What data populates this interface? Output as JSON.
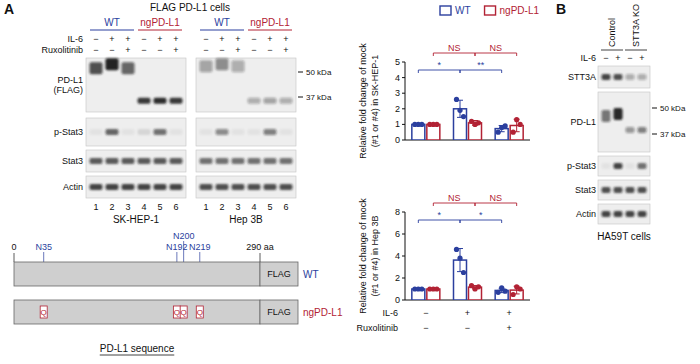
{
  "panel_a": {
    "label": "A",
    "title": "FLAG PD-L1 cells",
    "group_colors": [
      "#2b3f9e",
      "#b22234"
    ],
    "treatments": [
      "IL-6",
      "Ruxolitinib"
    ],
    "row_labels": [
      [
        "PD-L1",
        "(FLAG)"
      ],
      [
        "p-Stat3"
      ],
      [
        "Stat3"
      ],
      [
        "Actin"
      ]
    ],
    "markers": [
      {
        "value": 50,
        "label": "50 kDa"
      },
      {
        "value": 37,
        "label": "37 kDa"
      }
    ],
    "blots": [
      {
        "cell_line": "SK-HEP-1",
        "groups": [
          "WT",
          "ngPD-L1"
        ],
        "lane_numbers": [
          1,
          2,
          3,
          4,
          5,
          6
        ],
        "treatment_signs": [
          [
            "−",
            "+",
            "+",
            "−",
            "+",
            "+"
          ],
          [
            "−",
            "−",
            "+",
            "−",
            "−",
            "+"
          ]
        ],
        "rows": [
          {
            "kda": [
              52,
              54,
              52,
              35,
              35,
              35
            ],
            "intensity": [
              0.75,
              0.97,
              0.65,
              0.85,
              0.9,
              0.85
            ]
          },
          {
            "intensity": [
              0.05,
              0.65,
              0.05,
              0.1,
              0.6,
              0.05
            ]
          },
          {
            "intensity": [
              0.7,
              0.7,
              0.7,
              0.7,
              0.7,
              0.7
            ]
          },
          {
            "intensity": [
              0.8,
              0.8,
              0.8,
              0.8,
              0.8,
              0.8
            ]
          }
        ]
      },
      {
        "cell_line": "Hep 3B",
        "groups": [
          "WT",
          "ngPD-L1"
        ],
        "lane_numbers": [
          1,
          2,
          3,
          4,
          5,
          6
        ],
        "treatment_signs": [
          [
            "−",
            "+",
            "+",
            "−",
            "+",
            "+"
          ],
          [
            "−",
            "−",
            "+",
            "−",
            "−",
            "+"
          ]
        ],
        "rows": [
          {
            "kda": [
              53,
              54,
              53,
              35,
              35,
              35
            ],
            "intensity": [
              0.35,
              0.45,
              0.3,
              0.3,
              0.35,
              0.3
            ]
          },
          {
            "intensity": [
              0.05,
              0.45,
              0.05,
              0.05,
              0.5,
              0.05
            ]
          },
          {
            "intensity": [
              0.6,
              0.6,
              0.6,
              0.6,
              0.6,
              0.6
            ]
          },
          {
            "intensity": [
              0.75,
              0.75,
              0.75,
              0.75,
              0.75,
              0.75
            ]
          }
        ]
      }
    ]
  },
  "chart_data": [
    {
      "type": "bar",
      "y_label": [
        "Relative fold change of mock",
        "(#1 or #4) in SK-HEP-1"
      ],
      "categories": [
        null,
        null,
        null
      ],
      "ylim": [
        0,
        5
      ],
      "yticks": [
        0,
        1,
        2,
        3,
        4,
        5
      ],
      "grid": false,
      "legend": "top",
      "series": [
        {
          "name": "WT",
          "color": "#2b3f9e",
          "values": [
            1,
            2.0,
            0.73
          ],
          "errors": [
            0,
            0.55,
            0.2
          ],
          "points": [
            [
              1,
              1,
              1
            ],
            [
              2.6,
              1.9,
              1.5
            ],
            [
              0.5,
              0.8,
              0.9
            ]
          ]
        },
        {
          "name": "ngPD-L1",
          "color": "#b22234",
          "values": [
            1,
            1.1,
            0.93
          ],
          "errors": [
            0,
            0.15,
            0.4
          ],
          "points": [
            [
              1,
              1,
              1
            ],
            [
              1.2,
              1.0,
              1.1
            ],
            [
              0.5,
              1.3,
              1.0
            ]
          ]
        }
      ],
      "annotations": [
        {
          "text": "*",
          "series": 0,
          "from": 0,
          "to": 1
        },
        {
          "text": "**",
          "series": 0,
          "from": 1,
          "to": 2
        },
        {
          "text": "NS",
          "series": 1,
          "from": 0,
          "to": 1
        },
        {
          "text": "NS",
          "series": 1,
          "from": 1,
          "to": 2
        }
      ]
    },
    {
      "type": "bar",
      "y_label": [
        "Relative fold change of mock",
        "(#1 or #4) in Hep 3B"
      ],
      "categories": [
        null,
        null,
        null
      ],
      "ylim": [
        0,
        8
      ],
      "yticks": [
        0,
        2,
        4,
        6,
        8
      ],
      "grid": false,
      "series": [
        {
          "color": "#2b3f9e",
          "values": [
            1,
            3.63,
            0.87
          ],
          "errors": [
            0,
            1.05,
            0.2
          ],
          "points": [
            [
              1,
              1,
              1
            ],
            [
              4.6,
              3.8,
              2.5
            ],
            [
              0.7,
              1.1,
              0.8
            ]
          ]
        },
        {
          "color": "#b22234",
          "values": [
            1,
            1.17,
            0.9
          ],
          "errors": [
            0,
            0.15,
            0.35
          ],
          "points": [
            [
              1,
              1,
              1
            ],
            [
              1.3,
              1.0,
              1.2
            ],
            [
              0.5,
              1.2,
              1.0
            ]
          ]
        }
      ],
      "x_rows": [
        {
          "label": "IL-6",
          "values": [
            "−",
            "+",
            "+"
          ]
        },
        {
          "label": "Ruxolitinib",
          "values": [
            "−",
            "−",
            "+"
          ]
        }
      ],
      "annotations": [
        {
          "text": "*",
          "series": 0,
          "from": 0,
          "to": 1
        },
        {
          "text": "*",
          "series": 0,
          "from": 1,
          "to": 2
        },
        {
          "text": "NS",
          "series": 1,
          "from": 0,
          "to": 1
        },
        {
          "text": "NS",
          "series": 1,
          "from": 1,
          "to": 2
        }
      ]
    }
  ],
  "panel_b": {
    "label": "B",
    "groups": [
      "Control",
      "STT3A KO"
    ],
    "treatments": [
      "IL-6"
    ],
    "treatment_signs": [
      [
        "−",
        "+",
        "−",
        "+"
      ]
    ],
    "row_labels": [
      [
        "STT3A"
      ],
      [
        "PD-L1"
      ],
      [
        "p-Stat3"
      ],
      [
        "Stat3"
      ],
      [
        "Actin"
      ]
    ],
    "markers": [
      {
        "value": 50,
        "label": "50 kDa"
      },
      {
        "value": 37,
        "label": "37 kDa"
      }
    ],
    "rows": [
      {
        "intensity": [
          0.8,
          0.75,
          0.3,
          0.3
        ]
      },
      {
        "kda": [
          46,
          47,
          39,
          39
        ],
        "intensity": [
          0.55,
          0.95,
          0.4,
          0.5
        ]
      },
      {
        "intensity": [
          0.05,
          0.8,
          0.05,
          0.6
        ]
      },
      {
        "intensity": [
          0.75,
          0.75,
          0.75,
          0.75
        ]
      },
      {
        "intensity": [
          0.8,
          0.8,
          0.8,
          0.8
        ]
      }
    ],
    "cell_line": "HA59T cells"
  },
  "diagram": {
    "start": 0,
    "end": {
      "value": 290,
      "label": "290 aa"
    },
    "sites": [
      {
        "position": 35,
        "label": "N35"
      },
      {
        "position": 192,
        "label": "N192"
      },
      {
        "position": 200,
        "label": "N200"
      },
      {
        "position": 219,
        "label": "N219"
      }
    ],
    "constructs": [
      {
        "name": "WT",
        "tag": "FLAG",
        "color": "#2b3f9e"
      },
      {
        "name": "ngPD-L1",
        "tag": "FLAG",
        "substitution": "Q",
        "color": "#b22234"
      }
    ],
    "caption": "PD-L1 sequence"
  }
}
